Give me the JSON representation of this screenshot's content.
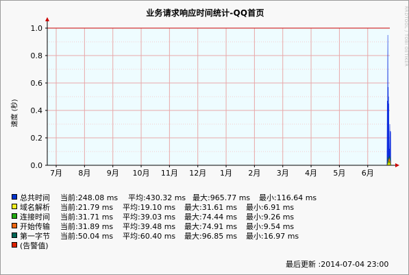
{
  "title": "业务请求响应时间统计-QQ首页",
  "watermark": "RRDTOOL / TOBI OETIKER",
  "chart_data": {
    "type": "area",
    "title": "业务请求响应时间统计-QQ首页",
    "xlabel": "",
    "ylabel": "速度 (秒)",
    "ylim": [
      0,
      1.0
    ],
    "yticks": [
      "0.0",
      "0.2",
      "0.4",
      "0.6",
      "0.8",
      "1.0"
    ],
    "categories": [
      "7月",
      "8月",
      "9月",
      "10月",
      "11月",
      "12月",
      "1月",
      "2月",
      "3月",
      "4月",
      "5月",
      "6月"
    ],
    "grid": true,
    "threshold": 1.0,
    "series": [
      {
        "name": "总共时间",
        "color": "#0022dd",
        "points": [
          [
            11.85,
            0.0
          ],
          [
            11.86,
            0.47
          ],
          [
            11.87,
            0.12
          ],
          [
            11.875,
            0.75
          ],
          [
            11.88,
            0.95
          ],
          [
            11.885,
            0.55
          ],
          [
            11.89,
            0.42
          ],
          [
            11.895,
            0.57
          ],
          [
            11.9,
            0.3
          ],
          [
            11.905,
            0.5
          ],
          [
            11.91,
            0.2
          ],
          [
            11.915,
            0.45
          ],
          [
            11.92,
            0.11
          ],
          [
            11.93,
            0.12
          ],
          [
            11.94,
            0.1
          ],
          [
            11.945,
            0.2
          ],
          [
            11.95,
            0.3
          ],
          [
            11.955,
            0.11
          ],
          [
            11.96,
            0.22
          ],
          [
            11.97,
            0.25
          ],
          [
            11.98,
            0.24
          ],
          [
            11.985,
            0.0
          ]
        ]
      },
      {
        "name": "第一字节",
        "color": "#00604a",
        "points": [
          [
            11.86,
            0.0
          ],
          [
            11.88,
            0.06
          ],
          [
            11.91,
            0.04
          ],
          [
            11.94,
            0.07
          ],
          [
            11.97,
            0.05
          ],
          [
            11.985,
            0.0
          ]
        ]
      },
      {
        "name": "开始传输",
        "color": "#ff6600",
        "points": [
          [
            11.86,
            0.0
          ],
          [
            11.9,
            0.03
          ],
          [
            11.93,
            0.05
          ],
          [
            11.96,
            0.03
          ],
          [
            11.985,
            0.0
          ]
        ]
      },
      {
        "name": "连接时间",
        "color": "#22aa00",
        "points": [
          [
            11.86,
            0.0
          ],
          [
            11.92,
            0.03
          ],
          [
            11.95,
            0.02
          ],
          [
            11.985,
            0.0
          ]
        ]
      },
      {
        "name": "域名解析",
        "color": "#eeee00",
        "points": [
          [
            11.86,
            0.0
          ],
          [
            11.92,
            0.02
          ],
          [
            11.985,
            0.0
          ]
        ]
      }
    ]
  },
  "legend": [
    {
      "name": "总共时间",
      "color": "#0033cc",
      "current": "当前:248.08 ms",
      "avg": "平均:430.32 ms",
      "max": "最大:965.77 ms",
      "min": "最小:116.64 ms"
    },
    {
      "name": "域名解析",
      "color": "#eeee22",
      "current": "当前:21.79 ms",
      "avg": "平均:19.10 ms",
      "max": "最大:31.61 ms",
      "min": "最小:6.91 ms"
    },
    {
      "name": "连接时间",
      "color": "#22aa11",
      "current": "当前:31.71 ms",
      "avg": "平均:39.03 ms",
      "max": "最大:74.44 ms",
      "min": "最小:9.26 ms"
    },
    {
      "name": "开始传输",
      "color": "#ee6611",
      "current": "当前:31.89 ms",
      "avg": "平均:39.48 ms",
      "max": "最大:74.91 ms",
      "min": "最小:9.54 ms"
    },
    {
      "name": "第一字节",
      "color": "#006655",
      "current": "当前:50.04 ms",
      "avg": "平均:60.40 ms",
      "max": "最大:96.85 ms",
      "min": "最小:16.97 ms"
    },
    {
      "name": "(告警值)",
      "color": "#dd2200",
      "current": "",
      "avg": "",
      "max": "",
      "min": ""
    }
  ],
  "last_updated": "最后更新 :2014-07-04 23:00"
}
